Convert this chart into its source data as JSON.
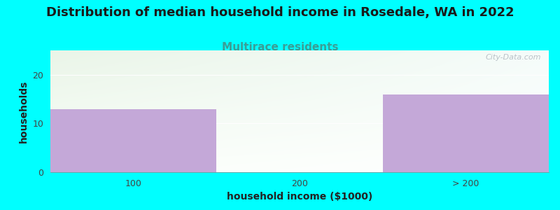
{
  "title": "Distribution of median household income in Rosedale, WA in 2022",
  "subtitle": "Multirace residents",
  "xlabel": "household income ($1000)",
  "ylabel": "households",
  "categories": [
    "100",
    "200",
    "> 200"
  ],
  "values": [
    13,
    0,
    16
  ],
  "bar_color": "#c4a8d8",
  "bg_color": "#00ffff",
  "ylim": [
    0,
    25
  ],
  "yticks": [
    0,
    10,
    20
  ],
  "title_fontsize": 13,
  "subtitle_fontsize": 11,
  "subtitle_color": "#3a9e96",
  "axis_label_fontsize": 10,
  "watermark": "City-Data.com",
  "gradient_top_left": "#eaf5e8",
  "gradient_top_right": "#f0f8f5",
  "gradient_bottom": "#f8fcf8"
}
